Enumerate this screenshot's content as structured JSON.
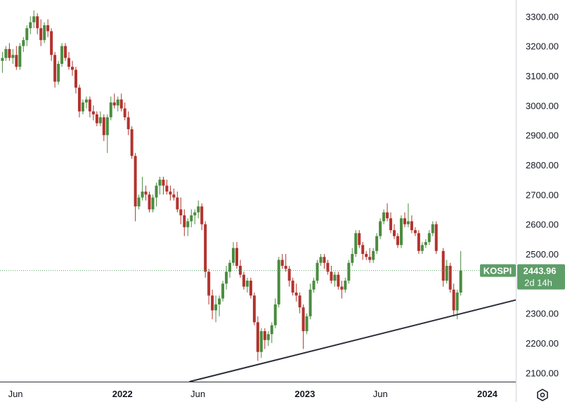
{
  "chart_data": {
    "type": "candlestick",
    "symbol": "KOSPI",
    "last_price": "2443.96",
    "countdown": "2d 14h",
    "y_axis": {
      "min": 2070,
      "max": 3355,
      "ticks": [
        "3300.00",
        "3200.00",
        "3100.00",
        "3000.00",
        "2900.00",
        "2800.00",
        "2700.00",
        "2600.00",
        "2500.00",
        "2400.00",
        "2300.00",
        "2200.00",
        "2100.00"
      ]
    },
    "x_axis": {
      "start": "2021-05-01",
      "end": "2024-02-27",
      "ticks": [
        {
          "label": "Jun",
          "date": "2021-06-01",
          "bold": false
        },
        {
          "label": "2022",
          "date": "2022-01-01",
          "bold": true
        },
        {
          "label": "Jun",
          "date": "2022-06-01",
          "bold": false
        },
        {
          "label": "2023",
          "date": "2023-01-01",
          "bold": true
        },
        {
          "label": "Jun",
          "date": "2023-06-01",
          "bold": false
        },
        {
          "label": "2024",
          "date": "2024-01-01",
          "bold": true
        }
      ]
    },
    "trendline": {
      "start": {
        "date": "2022-05-15",
        "value": 2070
      },
      "end": {
        "date": "2024-02-27",
        "value": 2345
      }
    },
    "colors": {
      "up": "#4a8c3f",
      "down": "#b2332e",
      "trendline": "#2a2e39",
      "price_tag": "#5e9e68"
    },
    "grid": false,
    "candles": [
      [
        "2021-05-03",
        3150,
        3180,
        3110,
        3160
      ],
      [
        "2021-05-10",
        3160,
        3200,
        3150,
        3190
      ],
      [
        "2021-05-17",
        3190,
        3210,
        3150,
        3160
      ],
      [
        "2021-05-24",
        3160,
        3190,
        3140,
        3170
      ],
      [
        "2021-05-31",
        3170,
        3200,
        3120,
        3130
      ],
      [
        "2021-06-07",
        3130,
        3210,
        3120,
        3200
      ],
      [
        "2021-06-14",
        3200,
        3230,
        3180,
        3220
      ],
      [
        "2021-06-21",
        3220,
        3270,
        3200,
        3260
      ],
      [
        "2021-06-28",
        3260,
        3300,
        3240,
        3280
      ],
      [
        "2021-07-05",
        3280,
        3320,
        3260,
        3300
      ],
      [
        "2021-07-12",
        3300,
        3310,
        3240,
        3260
      ],
      [
        "2021-07-19",
        3260,
        3290,
        3200,
        3220
      ],
      [
        "2021-07-26",
        3220,
        3280,
        3210,
        3270
      ],
      [
        "2021-08-02",
        3270,
        3290,
        3230,
        3250
      ],
      [
        "2021-08-09",
        3250,
        3260,
        3150,
        3170
      ],
      [
        "2021-08-16",
        3170,
        3180,
        3060,
        3080
      ],
      [
        "2021-08-23",
        3080,
        3150,
        3070,
        3140
      ],
      [
        "2021-08-30",
        3140,
        3210,
        3130,
        3200
      ],
      [
        "2021-09-06",
        3200,
        3210,
        3150,
        3160
      ],
      [
        "2021-09-13",
        3160,
        3180,
        3120,
        3130
      ],
      [
        "2021-09-20",
        3130,
        3150,
        3100,
        3120
      ],
      [
        "2021-09-27",
        3120,
        3130,
        3040,
        3060
      ],
      [
        "2021-10-04",
        3060,
        3070,
        2960,
        2980
      ],
      [
        "2021-10-11",
        2980,
        3020,
        2970,
        3010
      ],
      [
        "2021-10-18",
        3010,
        3030,
        2990,
        3020
      ],
      [
        "2021-10-25",
        3020,
        3030,
        2960,
        2980
      ],
      [
        "2021-11-01",
        2980,
        3000,
        2950,
        2970
      ],
      [
        "2021-11-08",
        2970,
        2980,
        2930,
        2940
      ],
      [
        "2021-11-15",
        2940,
        2980,
        2930,
        2960
      ],
      [
        "2021-11-22",
        2960,
        2970,
        2880,
        2900
      ],
      [
        "2021-11-29",
        2900,
        2970,
        2840,
        2960
      ],
      [
        "2021-12-06",
        2960,
        3030,
        2950,
        3010
      ],
      [
        "2021-12-13",
        3010,
        3040,
        2990,
        3000
      ],
      [
        "2021-12-20",
        3000,
        3030,
        2980,
        3020
      ],
      [
        "2021-12-27",
        3020,
        3040,
        2980,
        2990
      ],
      [
        "2022-01-03",
        2990,
        3010,
        2950,
        2960
      ],
      [
        "2022-01-10",
        2960,
        2980,
        2900,
        2920
      ],
      [
        "2022-01-17",
        2920,
        2930,
        2820,
        2830
      ],
      [
        "2022-01-24",
        2830,
        2840,
        2610,
        2660
      ],
      [
        "2022-01-31",
        2660,
        2700,
        2650,
        2690
      ],
      [
        "2022-02-07",
        2690,
        2760,
        2680,
        2710
      ],
      [
        "2022-02-14",
        2710,
        2730,
        2680,
        2700
      ],
      [
        "2022-02-21",
        2700,
        2710,
        2640,
        2650
      ],
      [
        "2022-02-28",
        2650,
        2700,
        2640,
        2690
      ],
      [
        "2022-03-07",
        2690,
        2740,
        2660,
        2730
      ],
      [
        "2022-03-14",
        2730,
        2760,
        2700,
        2750
      ],
      [
        "2022-03-21",
        2750,
        2760,
        2700,
        2730
      ],
      [
        "2022-03-28",
        2730,
        2750,
        2700,
        2710
      ],
      [
        "2022-04-04",
        2710,
        2730,
        2680,
        2700
      ],
      [
        "2022-04-11",
        2700,
        2720,
        2680,
        2690
      ],
      [
        "2022-04-18",
        2690,
        2710,
        2640,
        2650
      ],
      [
        "2022-04-25",
        2650,
        2690,
        2600,
        2630
      ],
      [
        "2022-05-02",
        2630,
        2650,
        2560,
        2590
      ],
      [
        "2022-05-09",
        2590,
        2620,
        2560,
        2610
      ],
      [
        "2022-05-16",
        2610,
        2650,
        2590,
        2630
      ],
      [
        "2022-05-23",
        2630,
        2650,
        2600,
        2640
      ],
      [
        "2022-05-30",
        2640,
        2680,
        2620,
        2660
      ],
      [
        "2022-06-06",
        2660,
        2670,
        2580,
        2600
      ],
      [
        "2022-06-13",
        2600,
        2610,
        2420,
        2440
      ],
      [
        "2022-06-20",
        2440,
        2450,
        2330,
        2360
      ],
      [
        "2022-06-27",
        2360,
        2380,
        2280,
        2310
      ],
      [
        "2022-07-04",
        2310,
        2360,
        2270,
        2330
      ],
      [
        "2022-07-11",
        2330,
        2360,
        2290,
        2350
      ],
      [
        "2022-07-18",
        2350,
        2410,
        2340,
        2400
      ],
      [
        "2022-07-25",
        2400,
        2460,
        2380,
        2440
      ],
      [
        "2022-08-01",
        2440,
        2480,
        2420,
        2470
      ],
      [
        "2022-08-08",
        2470,
        2540,
        2460,
        2520
      ],
      [
        "2022-08-15",
        2520,
        2540,
        2450,
        2460
      ],
      [
        "2022-08-22",
        2460,
        2480,
        2420,
        2430
      ],
      [
        "2022-08-29",
        2430,
        2440,
        2380,
        2390
      ],
      [
        "2022-09-05",
        2390,
        2420,
        2370,
        2410
      ],
      [
        "2022-09-12",
        2410,
        2420,
        2350,
        2360
      ],
      [
        "2022-09-19",
        2360,
        2370,
        2260,
        2270
      ],
      [
        "2022-09-26",
        2270,
        2290,
        2140,
        2170
      ],
      [
        "2022-10-03",
        2170,
        2250,
        2150,
        2240
      ],
      [
        "2022-10-10",
        2240,
        2250,
        2180,
        2210
      ],
      [
        "2022-10-17",
        2210,
        2240,
        2190,
        2230
      ],
      [
        "2022-10-24",
        2230,
        2270,
        2200,
        2260
      ],
      [
        "2022-10-31",
        2260,
        2350,
        2250,
        2330
      ],
      [
        "2022-11-07",
        2330,
        2490,
        2320,
        2480
      ],
      [
        "2022-11-14",
        2480,
        2500,
        2450,
        2460
      ],
      [
        "2022-11-21",
        2460,
        2500,
        2440,
        2450
      ],
      [
        "2022-11-28",
        2450,
        2460,
        2390,
        2410
      ],
      [
        "2022-12-05",
        2410,
        2420,
        2360,
        2370
      ],
      [
        "2022-12-12",
        2370,
        2400,
        2340,
        2360
      ],
      [
        "2022-12-19",
        2360,
        2370,
        2300,
        2320
      ],
      [
        "2022-12-26",
        2320,
        2330,
        2180,
        2240
      ],
      [
        "2023-01-02",
        2240,
        2300,
        2230,
        2290
      ],
      [
        "2023-01-09",
        2290,
        2400,
        2280,
        2380
      ],
      [
        "2023-01-16",
        2380,
        2420,
        2370,
        2410
      ],
      [
        "2023-01-23",
        2410,
        2480,
        2400,
        2470
      ],
      [
        "2023-01-30",
        2470,
        2500,
        2460,
        2490
      ],
      [
        "2023-02-06",
        2490,
        2500,
        2450,
        2470
      ],
      [
        "2023-02-13",
        2470,
        2480,
        2430,
        2440
      ],
      [
        "2023-02-20",
        2440,
        2460,
        2400,
        2410
      ],
      [
        "2023-02-27",
        2410,
        2440,
        2390,
        2430
      ],
      [
        "2023-03-06",
        2430,
        2440,
        2380,
        2390
      ],
      [
        "2023-03-13",
        2390,
        2410,
        2350,
        2380
      ],
      [
        "2023-03-20",
        2380,
        2420,
        2370,
        2410
      ],
      [
        "2023-03-27",
        2410,
        2480,
        2400,
        2470
      ],
      [
        "2023-04-03",
        2470,
        2520,
        2460,
        2500
      ],
      [
        "2023-04-10",
        2500,
        2580,
        2490,
        2570
      ],
      [
        "2023-04-17",
        2570,
        2580,
        2520,
        2530
      ],
      [
        "2023-04-24",
        2530,
        2540,
        2480,
        2500
      ],
      [
        "2023-05-01",
        2500,
        2510,
        2480,
        2490
      ],
      [
        "2023-05-08",
        2490,
        2520,
        2470,
        2480
      ],
      [
        "2023-05-15",
        2480,
        2520,
        2470,
        2510
      ],
      [
        "2023-05-22",
        2510,
        2570,
        2500,
        2560
      ],
      [
        "2023-05-29",
        2560,
        2620,
        2550,
        2610
      ],
      [
        "2023-06-05",
        2610,
        2650,
        2600,
        2640
      ],
      [
        "2023-06-12",
        2640,
        2670,
        2610,
        2620
      ],
      [
        "2023-06-19",
        2620,
        2640,
        2570,
        2580
      ],
      [
        "2023-06-26",
        2580,
        2600,
        2550,
        2560
      ],
      [
        "2023-07-03",
        2560,
        2570,
        2520,
        2530
      ],
      [
        "2023-07-10",
        2530,
        2630,
        2520,
        2620
      ],
      [
        "2023-07-17",
        2620,
        2640,
        2590,
        2600
      ],
      [
        "2023-07-24",
        2600,
        2670,
        2590,
        2610
      ],
      [
        "2023-07-31",
        2610,
        2630,
        2570,
        2580
      ],
      [
        "2023-08-07",
        2580,
        2590,
        2560,
        2570
      ],
      [
        "2023-08-14",
        2570,
        2580,
        2500,
        2510
      ],
      [
        "2023-08-21",
        2510,
        2540,
        2500,
        2530
      ],
      [
        "2023-08-28",
        2530,
        2550,
        2520,
        2540
      ],
      [
        "2023-09-04",
        2540,
        2580,
        2530,
        2570
      ],
      [
        "2023-09-11",
        2570,
        2610,
        2560,
        2600
      ],
      [
        "2023-09-18",
        2600,
        2610,
        2500,
        2510
      ],
      [
        "2023-10-02",
        2510,
        2520,
        2390,
        2410
      ],
      [
        "2023-10-09",
        2410,
        2480,
        2400,
        2460
      ],
      [
        "2023-10-16",
        2460,
        2470,
        2370,
        2380
      ],
      [
        "2023-10-23",
        2380,
        2400,
        2290,
        2310
      ],
      [
        "2023-10-30",
        2310,
        2380,
        2280,
        2370
      ],
      [
        "2023-11-06",
        2370,
        2510,
        2360,
        2443.96
      ]
    ]
  }
}
